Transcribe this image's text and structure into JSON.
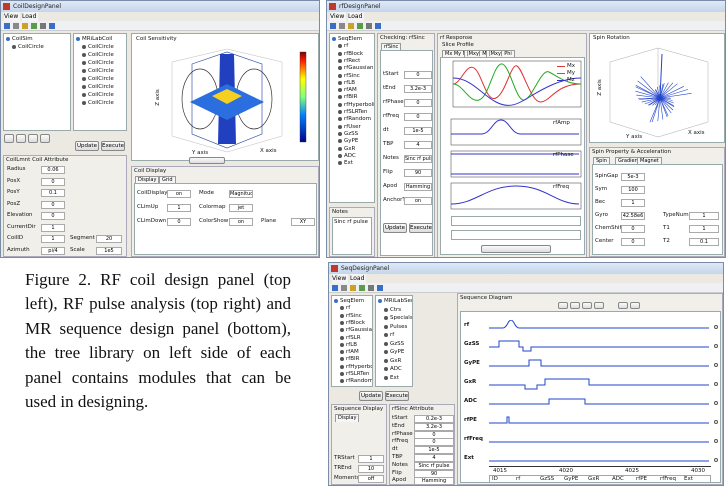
{
  "caption": "Figure 2. RF coil design panel (top left), RF pulse analysis (top right) and MR sequence design panel (bottom), the tree library on left side of each panel contains modules that can be used in designing.",
  "coil_panel": {
    "title": "CoilDesignPanel",
    "menu": [
      "View",
      "Load"
    ],
    "tree": [
      "CoilSim",
      "CoilCircle"
    ],
    "library": [
      "MRiLabCoil",
      "CoilCircle",
      "CoilCircle",
      "CoilCircle",
      "CoilCircle",
      "CoilCircle",
      "CoilCircle",
      "CoilCircle",
      "CoilCircle"
    ],
    "plot_title": "Coil Sensitivity",
    "axis_labels": [
      "Z axis",
      "Y axis",
      "X axis"
    ],
    "attr_title": "CoilLmnt  Coil Attribute",
    "attributes": [
      [
        "Radius",
        "0.06"
      ],
      [
        "PosX",
        "0"
      ],
      [
        "PosY",
        "0.1"
      ],
      [
        "PosZ",
        "0"
      ],
      [
        "Elevation",
        "0"
      ],
      [
        "CurrentDir",
        "1"
      ],
      [
        "CoilID",
        "1"
      ],
      [
        "Azimuth",
        "pi/4"
      ]
    ],
    "extra": [
      [
        "Segment",
        "20"
      ],
      [
        "Scale",
        "1e5"
      ]
    ],
    "buttons": [
      "Update",
      "Execute"
    ],
    "display_title": "Coil Display",
    "tabs": [
      "Display",
      "Grid"
    ],
    "display_fields": [
      [
        "CoilDisplay",
        "on"
      ],
      [
        "CLimUp",
        "1"
      ],
      [
        "CLimDown",
        "0"
      ],
      [
        "Mode",
        "Magnitude"
      ],
      [
        "Colormap",
        "jet"
      ],
      [
        "ColorShow",
        "on"
      ],
      [
        "Plane",
        "XY"
      ]
    ]
  },
  "rf_panel": {
    "title": "rfDesignPanel",
    "menu": [
      "View",
      "Load"
    ],
    "tree": [
      "SeqElem",
      "rf",
      "rfBlock",
      "rfRect",
      "rfGaussian",
      "rfSinc",
      "rfLB",
      "rfAM",
      "rfBIR",
      "rfHyperbolicSecant",
      "rfSLRTen",
      "rfRandom",
      "rfUser",
      "GzSS",
      "GyPE",
      "GxR",
      "ADC",
      "Ext"
    ],
    "notes_title": "Notes",
    "notes": "Sinc rf pulse",
    "attr_title": "Checking: rfSinc",
    "attr_tab": "rfSinc",
    "attributes": [
      [
        "tStart",
        "0"
      ],
      [
        "tEnd",
        "3.2e-3"
      ],
      [
        "rfPhase",
        "0"
      ],
      [
        "rfFreq",
        "0"
      ],
      [
        "dt",
        "1e-5"
      ],
      [
        "TBP",
        "4"
      ],
      [
        "Notes",
        "Sinc rf pulse"
      ],
      [
        "Flip",
        "90"
      ],
      [
        "Apod",
        "Hamming"
      ],
      [
        "AnchorTE",
        "on"
      ]
    ],
    "buttons": [
      "Update",
      "Execute"
    ],
    "response_title": "rf Response",
    "profile_title": "Slice Profile",
    "profile_tabs": [
      "Mx My Mz",
      "|Mxy| Mz",
      "|Mxy| Phi"
    ],
    "legend": [
      "Mx",
      "My",
      "Mz"
    ],
    "trace_labels": [
      "rfAmp",
      "rfPhase",
      "rfFreq"
    ],
    "rotation_title": "Spin Rotation",
    "rotation_axes": [
      "Z axis",
      "Y axis",
      "X axis"
    ],
    "property_title": "Spin Property & Acceleration",
    "property_tabs": [
      "Spin",
      "Gradient",
      "Magnet"
    ],
    "property_fields": [
      [
        "SpinGap",
        "5e-3"
      ],
      [
        "Sym",
        "100"
      ],
      [
        "Bec",
        "1"
      ],
      [
        "Gyro",
        "42.58e6"
      ],
      [
        "ChemShift",
        "0"
      ],
      [
        "Center",
        "0"
      ]
    ],
    "property_fields_right": [
      [
        "TypeNum",
        "1"
      ],
      [
        "T1",
        "1"
      ],
      [
        "T2",
        "0.1"
      ]
    ]
  },
  "seq_panel": {
    "title": "SeqDesignPanel",
    "menu": [
      "View",
      "Load"
    ],
    "tree": [
      "SeqElem",
      "rf",
      "rfSinc",
      "rfBlock",
      "rfGaussian",
      "rfSLR",
      "rfLB",
      "rfAM",
      "rfBIR",
      "rfHyperbolicSec",
      "rfSLRTen",
      "rfRandom"
    ],
    "library": [
      "MRiLabSeq",
      "Ctrs",
      "Specials",
      "Pulses",
      "rf",
      "GzSS",
      "GyPE",
      "GxR",
      "ADC",
      "Ext"
    ],
    "buttons": [
      "Update",
      "Execute"
    ],
    "display_title": "Sequence Display",
    "display_tab": "Display",
    "display_fields": [
      [
        "TRStart",
        "1"
      ],
      [
        "TREnd",
        "10"
      ],
      [
        "Moments",
        "off"
      ]
    ],
    "attr_title": "rfSinc Attribute",
    "attributes": [
      [
        "tStart",
        "0.2e-3"
      ],
      [
        "tEnd",
        "3.2e-3"
      ],
      [
        "rfPhase",
        "0"
      ],
      [
        "rfFreq",
        "0"
      ],
      [
        "dt",
        "1e-5"
      ],
      [
        "TBP",
        "4"
      ],
      [
        "Notes",
        "Sinc rf pulse"
      ],
      [
        "Flip",
        "90"
      ],
      [
        "Apod",
        "Hamming"
      ]
    ],
    "diagram_title": "Sequence Diagram",
    "channels": [
      "rf",
      "GzSS",
      "GyPE",
      "GxR",
      "ADC",
      "rfPE",
      "rfFreq",
      "Ext"
    ],
    "timeline": [
      "4015",
      "4020",
      "4025",
      "4030"
    ],
    "table_header": [
      "ID",
      "rf",
      "GzSS",
      "GyPE",
      "GxR",
      "ADC",
      "rfPE",
      "rfFreq",
      "Ext"
    ]
  }
}
